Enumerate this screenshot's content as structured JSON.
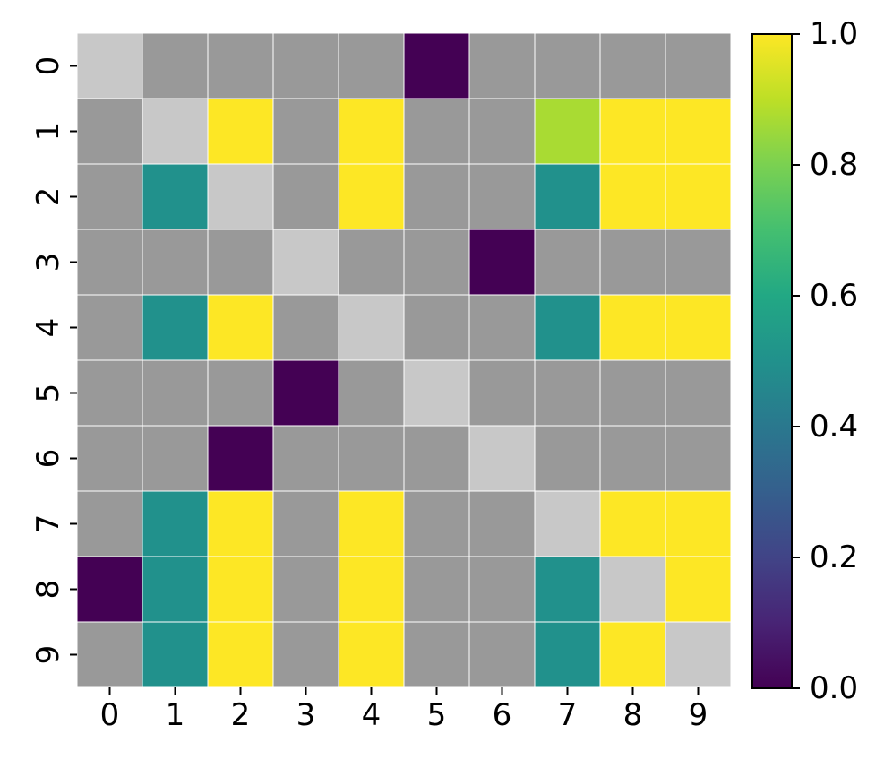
{
  "chart_data": {
    "type": "heatmap",
    "colormap": "viridis",
    "missing_color": "#999999",
    "diagonal_color": "#c8c8c8",
    "cell_border_color": "#ffffff",
    "x_tick_labels": [
      "0",
      "1",
      "2",
      "3",
      "4",
      "5",
      "6",
      "7",
      "8",
      "9"
    ],
    "y_tick_labels": [
      "0",
      "1",
      "2",
      "3",
      "4",
      "5",
      "6",
      "7",
      "8",
      "9"
    ],
    "colorbar": {
      "range": [
        0.0,
        1.0
      ],
      "ticks": [
        0.0,
        0.2,
        0.4,
        0.6,
        0.8,
        1.0
      ],
      "tick_labels": [
        "0.0",
        "0.2",
        "0.4",
        "0.6",
        "0.8",
        "1.0"
      ]
    },
    "values": [
      [
        "diag",
        null,
        null,
        null,
        null,
        0.0,
        null,
        null,
        null,
        null
      ],
      [
        null,
        "diag",
        1.0,
        null,
        1.0,
        null,
        null,
        0.87,
        1.0,
        1.0
      ],
      [
        null,
        0.5,
        "diag",
        null,
        1.0,
        null,
        null,
        0.5,
        1.0,
        1.0
      ],
      [
        null,
        null,
        null,
        "diag",
        null,
        null,
        0.0,
        null,
        null,
        null
      ],
      [
        null,
        0.5,
        1.0,
        null,
        "diag",
        null,
        null,
        0.5,
        1.0,
        1.0
      ],
      [
        null,
        null,
        null,
        0.0,
        null,
        "diag",
        null,
        null,
        null,
        null
      ],
      [
        null,
        null,
        0.0,
        null,
        null,
        null,
        "diag",
        null,
        null,
        null
      ],
      [
        null,
        0.5,
        1.0,
        null,
        1.0,
        null,
        null,
        "diag",
        1.0,
        1.0
      ],
      [
        0.0,
        0.5,
        1.0,
        null,
        1.0,
        null,
        null,
        0.5,
        "diag",
        1.0
      ],
      [
        null,
        0.5,
        1.0,
        null,
        1.0,
        null,
        null,
        0.5,
        1.0,
        "diag"
      ]
    ]
  }
}
